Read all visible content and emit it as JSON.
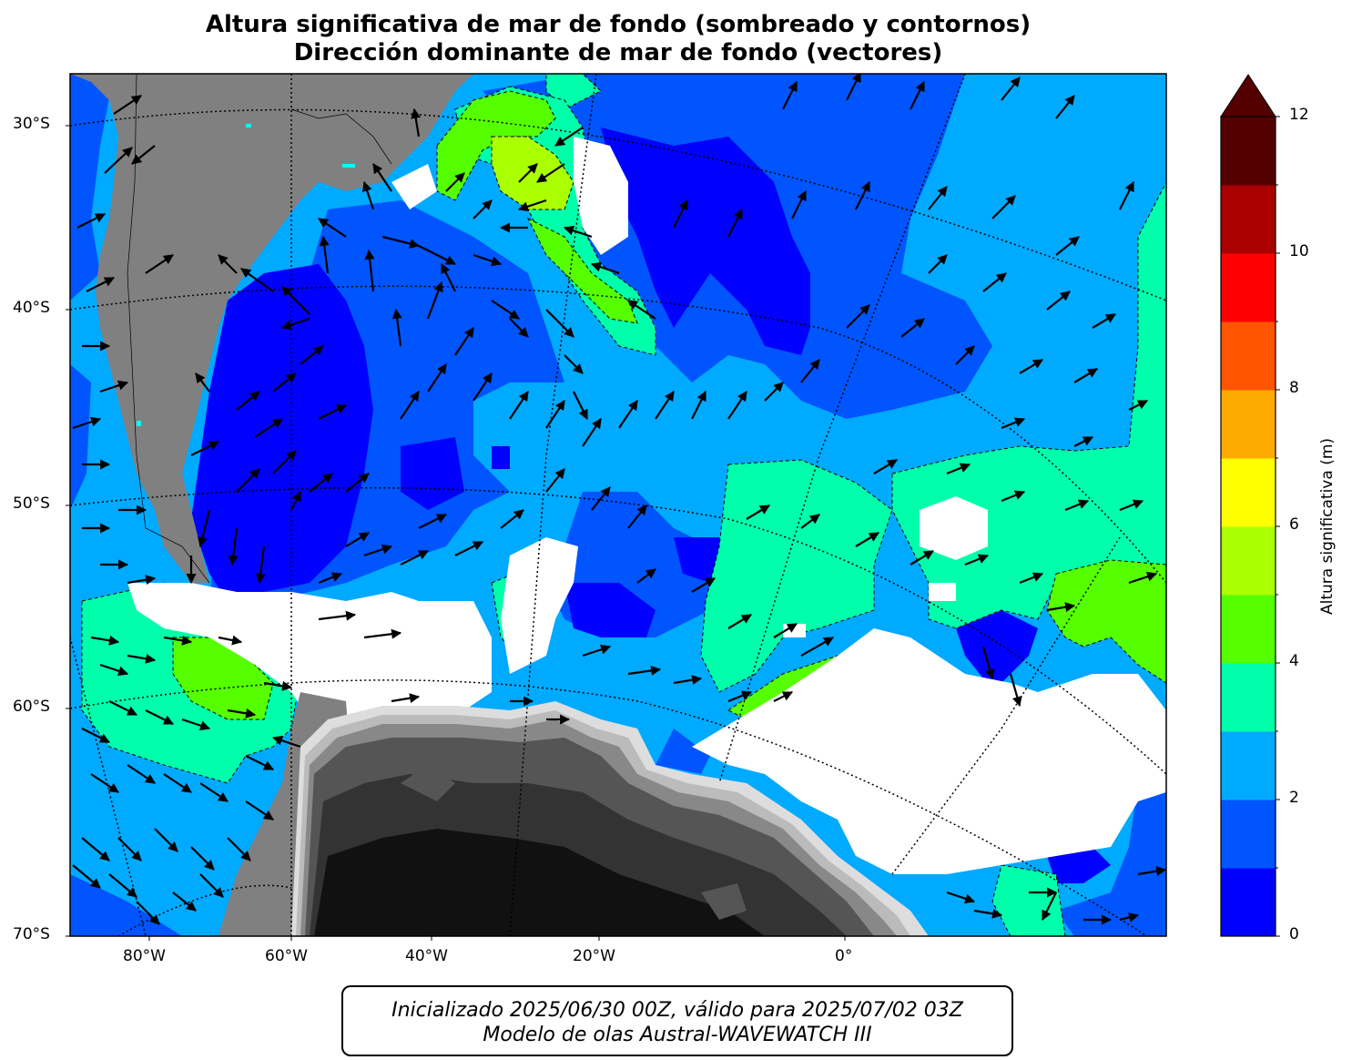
{
  "title": {
    "line1": "Altura significativa de mar de fondo (sombreado y contornos)",
    "line2": "Dirección dominante de mar de fondo (vectores)"
  },
  "axes": {
    "lat_ticks": [
      "30°S",
      "40°S",
      "50°S",
      "60°S",
      "70°S"
    ],
    "lon_ticks": [
      "80°W",
      "60°W",
      "40°W",
      "20°W",
      "0°"
    ]
  },
  "colorbar": {
    "label": "Altura significativa (m)",
    "ticks": [
      "0",
      "2",
      "4",
      "6",
      "8",
      "10",
      "12"
    ],
    "levels": [
      0,
      1,
      2,
      3,
      4,
      5,
      6,
      7,
      8,
      9,
      10,
      11,
      12
    ],
    "colors": [
      "#0000ff",
      "#0055ff",
      "#00aaff",
      "#00ffaa",
      "#55ff00",
      "#aaff00",
      "#ffff00",
      "#ffaa00",
      "#ff5500",
      "#ff0000",
      "#aa0000",
      "#550000"
    ],
    "extend": "max",
    "extend_color": "#550000"
  },
  "map_colors": {
    "land": "#808080",
    "ice_no_data": "#ffffff",
    "antarctica_shades": [
      "#111111",
      "#333333",
      "#555555",
      "#777777",
      "#999999",
      "#bbbbbb",
      "#dddddd"
    ],
    "vector": "#000000",
    "lakes": "#00ffff"
  },
  "footer": {
    "line1": "Inicializado 2025/06/30 00Z, válido para 2025/07/02 03Z",
    "line2": "Modelo de olas Austral-WAVEWATCH III"
  }
}
